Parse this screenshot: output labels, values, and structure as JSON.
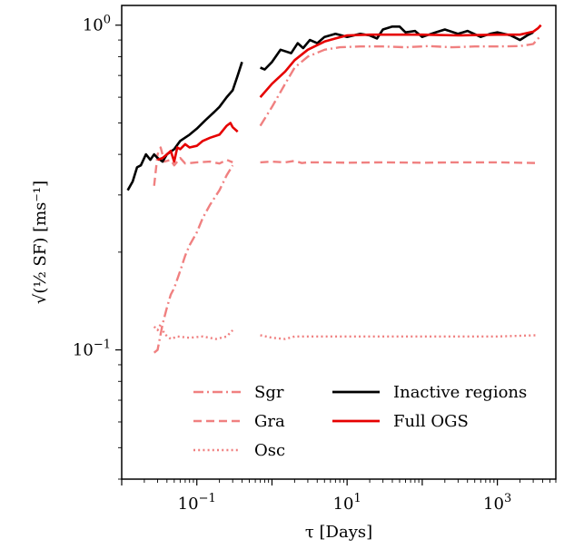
{
  "chart_data": {
    "type": "line",
    "xlabel": "τ [Days]",
    "ylabel": "√(½ SF) [ms⁻¹]",
    "xscale": "log",
    "yscale": "log",
    "xlim": [
      0.01,
      6000
    ],
    "ylim": [
      0.04,
      1.15
    ],
    "grid": false,
    "legend_position": "lower-center",
    "x_ticks": [
      {
        "value": 0.1,
        "mantissa": "10",
        "exponent": "−1"
      },
      {
        "value": 10,
        "mantissa": "10",
        "exponent": "1"
      },
      {
        "value": 1000,
        "mantissa": "10",
        "exponent": "3"
      }
    ],
    "y_ticks": [
      {
        "value": 0.1,
        "mantissa": "10",
        "exponent": "−1"
      },
      {
        "value": 1.0,
        "mantissa": "10",
        "exponent": "0"
      }
    ],
    "series": [
      {
        "name": "Sgr",
        "color": "#f08080",
        "style": "dashdot",
        "segments": [
          [
            [
              0.027,
              0.098
            ],
            [
              0.03,
              0.1
            ],
            [
              0.035,
              0.12
            ],
            [
              0.04,
              0.135
            ],
            [
              0.045,
              0.148
            ],
            [
              0.05,
              0.155
            ],
            [
              0.06,
              0.175
            ],
            [
              0.07,
              0.195
            ],
            [
              0.08,
              0.21
            ],
            [
              0.1,
              0.23
            ],
            [
              0.12,
              0.255
            ],
            [
              0.15,
              0.28
            ],
            [
              0.2,
              0.31
            ],
            [
              0.25,
              0.345
            ],
            [
              0.3,
              0.37
            ]
          ],
          [
            [
              0.7,
              0.49
            ],
            [
              1,
              0.56
            ],
            [
              1.5,
              0.66
            ],
            [
              2,
              0.74
            ],
            [
              3,
              0.8
            ],
            [
              5,
              0.84
            ],
            [
              8,
              0.855
            ],
            [
              15,
              0.86
            ],
            [
              30,
              0.86
            ],
            [
              60,
              0.855
            ],
            [
              120,
              0.862
            ],
            [
              250,
              0.855
            ],
            [
              500,
              0.86
            ],
            [
              1000,
              0.86
            ],
            [
              2000,
              0.862
            ],
            [
              3000,
              0.875
            ],
            [
              3800,
              0.93
            ]
          ]
        ]
      },
      {
        "name": "Gra",
        "color": "#f08080",
        "style": "dashed",
        "segments": [
          [
            [
              0.027,
              0.32
            ],
            [
              0.03,
              0.4
            ],
            [
              0.033,
              0.42
            ],
            [
              0.037,
              0.38
            ],
            [
              0.045,
              0.385
            ],
            [
              0.05,
              0.37
            ],
            [
              0.06,
              0.39
            ],
            [
              0.07,
              0.375
            ],
            [
              0.1,
              0.378
            ],
            [
              0.15,
              0.38
            ],
            [
              0.2,
              0.375
            ],
            [
              0.25,
              0.385
            ],
            [
              0.3,
              0.378
            ]
          ],
          [
            [
              0.7,
              0.378
            ],
            [
              1,
              0.38
            ],
            [
              1.5,
              0.378
            ],
            [
              2,
              0.382
            ],
            [
              2.5,
              0.376
            ],
            [
              3,
              0.378
            ],
            [
              5,
              0.378
            ],
            [
              10,
              0.377
            ],
            [
              30,
              0.378
            ],
            [
              100,
              0.377
            ],
            [
              300,
              0.378
            ],
            [
              1000,
              0.378
            ],
            [
              3500,
              0.376
            ]
          ]
        ]
      },
      {
        "name": "Osc",
        "color": "#f08080",
        "style": "dotted",
        "segments": [
          [
            [
              0.027,
              0.118
            ],
            [
              0.03,
              0.115
            ],
            [
              0.033,
              0.12
            ],
            [
              0.037,
              0.112
            ],
            [
              0.045,
              0.108
            ],
            [
              0.055,
              0.11
            ],
            [
              0.08,
              0.109
            ],
            [
              0.12,
              0.11
            ],
            [
              0.18,
              0.108
            ],
            [
              0.25,
              0.11
            ],
            [
              0.3,
              0.115
            ]
          ],
          [
            [
              0.7,
              0.111
            ],
            [
              1,
              0.109
            ],
            [
              1.5,
              0.108
            ],
            [
              2,
              0.11
            ],
            [
              3,
              0.11
            ],
            [
              10,
              0.11
            ],
            [
              100,
              0.11
            ],
            [
              1000,
              0.11
            ],
            [
              3500,
              0.111
            ]
          ]
        ]
      },
      {
        "name": "Inactive regions",
        "color": "#000000",
        "style": "solid",
        "segments": [
          [
            [
              0.012,
              0.31
            ],
            [
              0.014,
              0.33
            ],
            [
              0.016,
              0.365
            ],
            [
              0.018,
              0.37
            ],
            [
              0.021,
              0.4
            ],
            [
              0.024,
              0.385
            ],
            [
              0.027,
              0.4
            ],
            [
              0.03,
              0.39
            ],
            [
              0.035,
              0.38
            ],
            [
              0.04,
              0.4
            ],
            [
              0.05,
              0.415
            ],
            [
              0.06,
              0.44
            ],
            [
              0.08,
              0.46
            ],
            [
              0.1,
              0.48
            ],
            [
              0.13,
              0.51
            ],
            [
              0.17,
              0.54
            ],
            [
              0.2,
              0.56
            ],
            [
              0.25,
              0.6
            ],
            [
              0.3,
              0.63
            ],
            [
              0.35,
              0.7
            ],
            [
              0.4,
              0.77
            ]
          ],
          [
            [
              0.7,
              0.74
            ],
            [
              0.8,
              0.73
            ],
            [
              1,
              0.77
            ],
            [
              1.3,
              0.84
            ],
            [
              1.8,
              0.82
            ],
            [
              2.2,
              0.88
            ],
            [
              2.6,
              0.85
            ],
            [
              3.2,
              0.9
            ],
            [
              4,
              0.88
            ],
            [
              5,
              0.92
            ],
            [
              7,
              0.94
            ],
            [
              10,
              0.92
            ],
            [
              15,
              0.94
            ],
            [
              20,
              0.93
            ],
            [
              25,
              0.91
            ],
            [
              30,
              0.97
            ],
            [
              40,
              0.99
            ],
            [
              50,
              0.99
            ],
            [
              60,
              0.95
            ],
            [
              80,
              0.96
            ],
            [
              100,
              0.92
            ],
            [
              150,
              0.95
            ],
            [
              200,
              0.97
            ],
            [
              300,
              0.94
            ],
            [
              400,
              0.96
            ],
            [
              600,
              0.92
            ],
            [
              800,
              0.94
            ],
            [
              1000,
              0.95
            ],
            [
              1500,
              0.93
            ],
            [
              2000,
              0.9
            ],
            [
              2500,
              0.93
            ],
            [
              3000,
              0.95
            ]
          ]
        ]
      },
      {
        "name": "Full OGS",
        "color": "#e60000",
        "style": "solid",
        "segments": [
          [
            [
              0.03,
              0.385
            ],
            [
              0.035,
              0.39
            ],
            [
              0.04,
              0.4
            ],
            [
              0.045,
              0.41
            ],
            [
              0.05,
              0.38
            ],
            [
              0.055,
              0.42
            ],
            [
              0.06,
              0.415
            ],
            [
              0.07,
              0.43
            ],
            [
              0.08,
              0.42
            ],
            [
              0.1,
              0.425
            ],
            [
              0.12,
              0.44
            ],
            [
              0.15,
              0.45
            ],
            [
              0.2,
              0.46
            ],
            [
              0.25,
              0.49
            ],
            [
              0.28,
              0.5
            ],
            [
              0.3,
              0.485
            ],
            [
              0.35,
              0.47
            ]
          ],
          [
            [
              0.7,
              0.6
            ],
            [
              1,
              0.66
            ],
            [
              1.5,
              0.72
            ],
            [
              2,
              0.78
            ],
            [
              3,
              0.84
            ],
            [
              5,
              0.89
            ],
            [
              7,
              0.91
            ],
            [
              10,
              0.93
            ],
            [
              20,
              0.935
            ],
            [
              50,
              0.935
            ],
            [
              100,
              0.935
            ],
            [
              300,
              0.93
            ],
            [
              1000,
              0.935
            ],
            [
              2000,
              0.935
            ],
            [
              3000,
              0.955
            ],
            [
              3500,
              0.98
            ],
            [
              3800,
              1.0
            ]
          ]
        ]
      }
    ],
    "legend": [
      {
        "label": "Sgr",
        "color": "#f08080",
        "style": "dashdot"
      },
      {
        "label": "Gra",
        "color": "#f08080",
        "style": "dashed"
      },
      {
        "label": "Osc",
        "color": "#f08080",
        "style": "dotted"
      },
      {
        "label": "Inactive regions",
        "color": "#000000",
        "style": "solid"
      },
      {
        "label": "Full OGS",
        "color": "#e60000",
        "style": "solid"
      }
    ]
  }
}
